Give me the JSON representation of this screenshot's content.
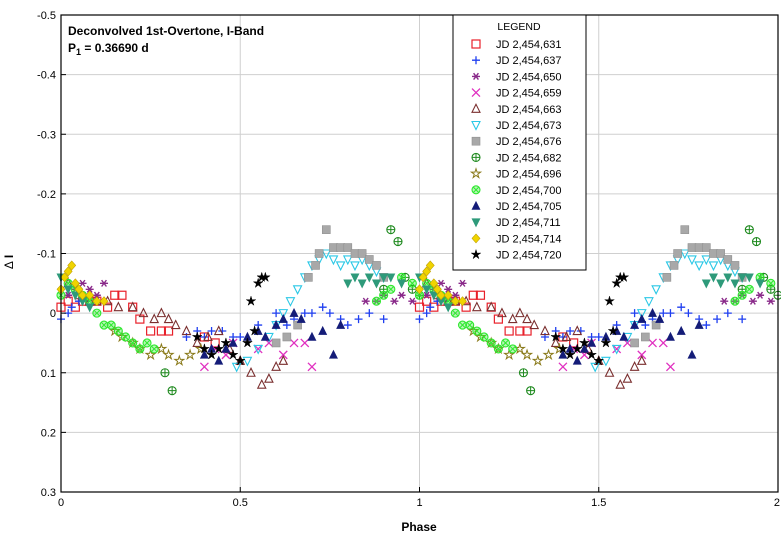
{
  "chart_data": {
    "type": "scatter",
    "title_line1": "Deconvolved 1st-Overtone, I-Band",
    "title_line2_prefix": "P",
    "title_line2_sub": "1",
    "title_line2_suffix": " = 0.36690 d",
    "xlabel": "Phase",
    "ylabel_symbol": "Δ",
    "ylabel_letter": "I",
    "xlim": [
      0,
      2
    ],
    "ylim": [
      -0.5,
      0.3
    ],
    "y_inverted": true,
    "grid": true,
    "x_ticks": [
      0,
      0.5,
      1,
      1.5,
      2
    ],
    "x_tick_labels": [
      "0",
      "0.5",
      "1",
      "1.5",
      "2"
    ],
    "y_ticks": [
      -0.5,
      -0.4,
      -0.3,
      -0.2,
      -0.1,
      0,
      0.1,
      0.2,
      0.3
    ],
    "y_tick_labels": [
      "-0.5",
      "-0.4",
      "-0.3",
      "-0.2",
      "-0.1",
      "0",
      "0.1",
      "0.2",
      "0.3"
    ],
    "legend_title": "LEGEND",
    "legend_position": "top-right",
    "series": [
      {
        "name": "JD 2,454,631",
        "marker": "square-open",
        "color": "#e8202a",
        "points": [
          [
            0.0,
            -0.01
          ],
          [
            0.02,
            -0.02
          ],
          [
            0.04,
            -0.01
          ],
          [
            0.06,
            -0.02
          ],
          [
            0.08,
            -0.02
          ],
          [
            0.1,
            -0.02
          ],
          [
            0.13,
            -0.01
          ],
          [
            0.15,
            -0.03
          ],
          [
            0.17,
            -0.03
          ],
          [
            0.2,
            -0.01
          ],
          [
            0.22,
            0.01
          ],
          [
            0.25,
            0.03
          ],
          [
            0.28,
            0.03
          ],
          [
            0.3,
            0.03
          ],
          [
            0.4,
            0.04
          ],
          [
            0.43,
            0.05
          ]
        ]
      },
      {
        "name": "JD 2,454,637",
        "marker": "plus",
        "color": "#1f3ff0",
        "points": [
          [
            0.0,
            0.01
          ],
          [
            0.02,
            0.0
          ],
          [
            0.03,
            -0.01
          ],
          [
            0.05,
            -0.02
          ],
          [
            0.07,
            -0.02
          ],
          [
            0.35,
            0.04
          ],
          [
            0.38,
            0.03
          ],
          [
            0.4,
            0.04
          ],
          [
            0.42,
            0.03
          ],
          [
            0.45,
            0.03
          ],
          [
            0.48,
            0.04
          ],
          [
            0.5,
            0.04
          ],
          [
            0.55,
            0.02
          ],
          [
            0.6,
            0.0
          ],
          [
            0.63,
            0.02
          ],
          [
            0.65,
            0.01
          ],
          [
            0.68,
            0.0
          ],
          [
            0.7,
            0.0
          ],
          [
            0.73,
            -0.01
          ],
          [
            0.75,
            0.0
          ],
          [
            0.78,
            0.01
          ],
          [
            0.8,
            0.02
          ],
          [
            0.83,
            0.01
          ],
          [
            0.86,
            0.0
          ],
          [
            0.9,
            0.01
          ]
        ]
      },
      {
        "name": "JD 2,454,650",
        "marker": "asterisk",
        "color": "#8a2a8a",
        "points": [
          [
            0.02,
            -0.03
          ],
          [
            0.04,
            -0.04
          ],
          [
            0.06,
            -0.05
          ],
          [
            0.08,
            -0.04
          ],
          [
            0.1,
            -0.03
          ],
          [
            0.12,
            -0.05
          ],
          [
            0.85,
            -0.02
          ],
          [
            0.88,
            -0.02
          ],
          [
            0.9,
            -0.03
          ],
          [
            0.93,
            -0.02
          ],
          [
            0.95,
            -0.03
          ],
          [
            0.98,
            -0.02
          ]
        ]
      },
      {
        "name": "JD 2,454,659",
        "marker": "x",
        "color": "#e030c0",
        "points": [
          [
            0.4,
            0.09
          ],
          [
            0.43,
            0.06
          ],
          [
            0.46,
            0.07
          ],
          [
            0.48,
            0.05
          ],
          [
            0.55,
            0.06
          ],
          [
            0.58,
            0.05
          ],
          [
            0.62,
            0.07
          ],
          [
            0.65,
            0.05
          ],
          [
            0.68,
            0.05
          ],
          [
            0.7,
            0.09
          ]
        ]
      },
      {
        "name": "JD 2,454,663",
        "marker": "triangle-up-open",
        "color": "#7a2f2f",
        "points": [
          [
            0.02,
            -0.05
          ],
          [
            0.05,
            -0.03
          ],
          [
            0.08,
            -0.02
          ],
          [
            0.1,
            -0.02
          ],
          [
            0.13,
            -0.02
          ],
          [
            0.16,
            -0.01
          ],
          [
            0.2,
            -0.01
          ],
          [
            0.23,
            0.0
          ],
          [
            0.26,
            0.01
          ],
          [
            0.28,
            0.0
          ],
          [
            0.3,
            0.01
          ],
          [
            0.32,
            0.02
          ],
          [
            0.35,
            0.03
          ],
          [
            0.38,
            0.05
          ],
          [
            0.41,
            0.04
          ],
          [
            0.44,
            0.03
          ],
          [
            0.47,
            0.06
          ],
          [
            0.5,
            0.08
          ],
          [
            0.53,
            0.1
          ],
          [
            0.56,
            0.12
          ],
          [
            0.58,
            0.11
          ],
          [
            0.6,
            0.09
          ],
          [
            0.62,
            0.08
          ]
        ]
      },
      {
        "name": "JD 2,454,673",
        "marker": "triangle-down-open",
        "color": "#2ac8e6",
        "points": [
          [
            0.49,
            0.09
          ],
          [
            0.52,
            0.08
          ],
          [
            0.55,
            0.06
          ],
          [
            0.58,
            0.04
          ],
          [
            0.6,
            0.02
          ],
          [
            0.62,
            0.0
          ],
          [
            0.64,
            -0.02
          ],
          [
            0.66,
            -0.04
          ],
          [
            0.68,
            -0.06
          ],
          [
            0.7,
            -0.08
          ],
          [
            0.72,
            -0.09
          ],
          [
            0.74,
            -0.1
          ],
          [
            0.76,
            -0.09
          ],
          [
            0.78,
            -0.08
          ],
          [
            0.8,
            -0.09
          ],
          [
            0.82,
            -0.08
          ],
          [
            0.84,
            -0.09
          ],
          [
            0.86,
            -0.08
          ],
          [
            0.88,
            -0.07
          ],
          [
            0.9,
            -0.06
          ]
        ]
      },
      {
        "name": "JD 2,454,676",
        "marker": "square-filled",
        "color": "#a8a8a8",
        "points": [
          [
            0.6,
            0.05
          ],
          [
            0.63,
            0.04
          ],
          [
            0.66,
            0.02
          ],
          [
            0.69,
            -0.06
          ],
          [
            0.71,
            -0.08
          ],
          [
            0.72,
            -0.1
          ],
          [
            0.74,
            -0.14
          ],
          [
            0.76,
            -0.11
          ],
          [
            0.78,
            -0.11
          ],
          [
            0.8,
            -0.11
          ],
          [
            0.82,
            -0.1
          ],
          [
            0.84,
            -0.1
          ],
          [
            0.86,
            -0.09
          ],
          [
            0.88,
            -0.08
          ],
          [
            0.9,
            -0.06
          ]
        ]
      },
      {
        "name": "JD 2,454,682",
        "marker": "circle-plus",
        "color": "#1f8a1f",
        "points": [
          [
            0.29,
            0.1
          ],
          [
            0.31,
            0.13
          ],
          [
            0.9,
            -0.04
          ],
          [
            0.92,
            -0.14
          ],
          [
            0.94,
            -0.12
          ],
          [
            0.96,
            -0.06
          ],
          [
            0.98,
            -0.04
          ],
          [
            1.0,
            -0.03
          ]
        ]
      },
      {
        "name": "JD 2,454,696",
        "marker": "star-open",
        "color": "#8a7a1a",
        "points": [
          [
            0.15,
            0.03
          ],
          [
            0.17,
            0.04
          ],
          [
            0.2,
            0.05
          ],
          [
            0.22,
            0.06
          ],
          [
            0.25,
            0.07
          ],
          [
            0.28,
            0.06
          ],
          [
            0.3,
            0.07
          ],
          [
            0.33,
            0.08
          ],
          [
            0.36,
            0.07
          ],
          [
            0.39,
            0.06
          ]
        ]
      },
      {
        "name": "JD 2,454,700",
        "marker": "circle-x",
        "color": "#2ee82e",
        "points": [
          [
            0.0,
            -0.03
          ],
          [
            0.02,
            -0.05
          ],
          [
            0.04,
            -0.04
          ],
          [
            0.06,
            -0.03
          ],
          [
            0.08,
            -0.02
          ],
          [
            0.1,
            0.0
          ],
          [
            0.12,
            0.02
          ],
          [
            0.14,
            0.02
          ],
          [
            0.16,
            0.03
          ],
          [
            0.18,
            0.04
          ],
          [
            0.2,
            0.05
          ],
          [
            0.22,
            0.06
          ],
          [
            0.24,
            0.05
          ],
          [
            0.26,
            0.06
          ],
          [
            0.88,
            -0.02
          ],
          [
            0.9,
            -0.03
          ],
          [
            0.92,
            -0.04
          ],
          [
            0.95,
            -0.06
          ],
          [
            0.98,
            -0.05
          ]
        ]
      },
      {
        "name": "JD 2,454,705",
        "marker": "triangle-up-filled",
        "color": "#141c78",
        "points": [
          [
            0.4,
            0.07
          ],
          [
            0.42,
            0.06
          ],
          [
            0.44,
            0.08
          ],
          [
            0.46,
            0.06
          ],
          [
            0.48,
            0.05
          ],
          [
            0.52,
            0.04
          ],
          [
            0.55,
            0.03
          ],
          [
            0.57,
            0.04
          ],
          [
            0.6,
            0.02
          ],
          [
            0.62,
            0.01
          ],
          [
            0.65,
            0.0
          ],
          [
            0.67,
            0.01
          ],
          [
            0.7,
            0.04
          ],
          [
            0.73,
            0.03
          ],
          [
            0.76,
            0.07
          ],
          [
            0.78,
            0.02
          ]
        ]
      },
      {
        "name": "JD 2,454,711",
        "marker": "triangle-down-filled",
        "color": "#2e9a7a",
        "points": [
          [
            0.0,
            -0.06
          ],
          [
            0.02,
            -0.04
          ],
          [
            0.04,
            -0.03
          ],
          [
            0.06,
            -0.02
          ],
          [
            0.08,
            -0.01
          ],
          [
            0.8,
            -0.05
          ],
          [
            0.82,
            -0.06
          ],
          [
            0.84,
            -0.05
          ],
          [
            0.86,
            -0.06
          ],
          [
            0.88,
            -0.05
          ],
          [
            0.9,
            -0.06
          ],
          [
            0.92,
            -0.06
          ],
          [
            0.95,
            -0.05
          ]
        ]
      },
      {
        "name": "JD 2,454,714",
        "marker": "diamond-filled",
        "color": "#f0d400",
        "points": [
          [
            0.0,
            -0.04
          ],
          [
            0.01,
            -0.06
          ],
          [
            0.02,
            -0.07
          ],
          [
            0.03,
            -0.08
          ],
          [
            0.04,
            -0.05
          ],
          [
            0.05,
            -0.04
          ],
          [
            0.06,
            -0.03
          ],
          [
            0.08,
            -0.03
          ],
          [
            0.1,
            -0.02
          ],
          [
            0.12,
            -0.02
          ]
        ]
      },
      {
        "name": "JD 2,454,720",
        "marker": "star-filled",
        "color": "#000000",
        "points": [
          [
            0.38,
            0.04
          ],
          [
            0.4,
            0.06
          ],
          [
            0.42,
            0.07
          ],
          [
            0.44,
            0.06
          ],
          [
            0.46,
            0.05
          ],
          [
            0.48,
            0.07
          ],
          [
            0.5,
            0.08
          ],
          [
            0.52,
            0.05
          ],
          [
            0.54,
            0.03
          ],
          [
            0.55,
            -0.05
          ],
          [
            0.56,
            -0.06
          ],
          [
            0.57,
            -0.06
          ],
          [
            0.53,
            -0.02
          ]
        ]
      }
    ]
  }
}
